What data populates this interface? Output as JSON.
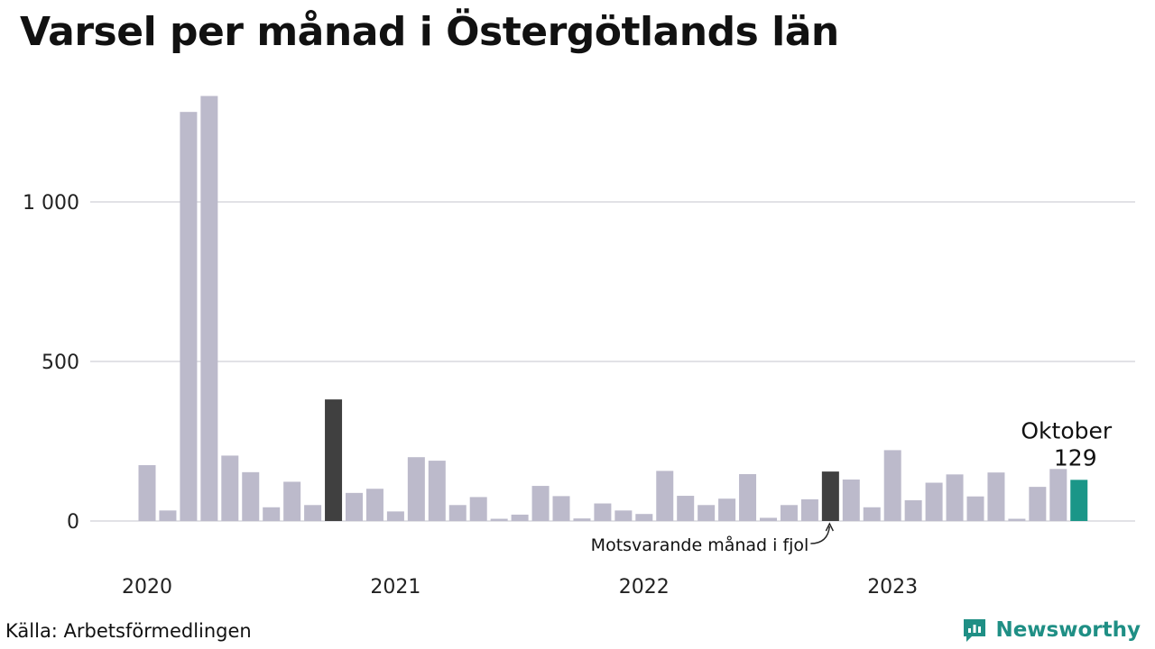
{
  "title": "Varsel per månad i Östergötlands län",
  "source": "Källa: Arbetsförmedlingen",
  "brand": {
    "name": "Newsworthy",
    "icon": "newsworthy-logo-icon"
  },
  "colors": {
    "bar": "#bcbacb",
    "highlight": "#404040",
    "current": "#1a9688",
    "grid": "#e2e2e6",
    "brand": "#1f8f85"
  },
  "chart_data": {
    "type": "bar",
    "title": "Varsel per månad i Östergötlands län",
    "xlabel": "",
    "ylabel": "",
    "ylim": [
      0,
      1400
    ],
    "grid": true,
    "y_ticks": [
      {
        "value": 0,
        "label": "0"
      },
      {
        "value": 500,
        "label": "500"
      },
      {
        "value": 1000,
        "label": "1 000"
      }
    ],
    "x_year_labels": [
      "2020",
      "2021",
      "2022",
      "2023"
    ],
    "categories": [
      "2020-01",
      "2020-02",
      "2020-03",
      "2020-04",
      "2020-05",
      "2020-06",
      "2020-07",
      "2020-08",
      "2020-09",
      "2020-10",
      "2020-11",
      "2020-12",
      "2021-01",
      "2021-02",
      "2021-03",
      "2021-04",
      "2021-05",
      "2021-06",
      "2021-07",
      "2021-08",
      "2021-09",
      "2021-10",
      "2021-11",
      "2021-12",
      "2022-01",
      "2022-02",
      "2022-03",
      "2022-04",
      "2022-05",
      "2022-06",
      "2022-07",
      "2022-08",
      "2022-09",
      "2022-10",
      "2022-11",
      "2022-12",
      "2023-01",
      "2023-02",
      "2023-03",
      "2023-04",
      "2023-05",
      "2023-06",
      "2023-07",
      "2023-08",
      "2023-09",
      "2023-10"
    ],
    "values": [
      175,
      33,
      1282,
      1332,
      205,
      153,
      43,
      123,
      50,
      381,
      88,
      101,
      30,
      200,
      189,
      50,
      75,
      7,
      20,
      110,
      78,
      8,
      55,
      33,
      22,
      157,
      79,
      50,
      70,
      147,
      10,
      50,
      68,
      155,
      130,
      43,
      222,
      65,
      120,
      146,
      77,
      152,
      7,
      107,
      163,
      129
    ],
    "highlight_index": [
      9,
      33
    ],
    "current_index": 45,
    "annotations": {
      "previous_year": "Motsvarande månad i fjol",
      "current_month": "Oktober",
      "current_value": "129"
    }
  }
}
